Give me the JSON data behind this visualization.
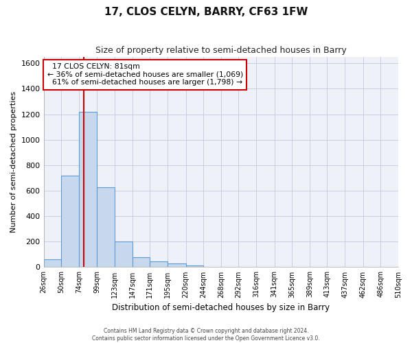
{
  "title": "17, CLOS CELYN, BARRY, CF63 1FW",
  "subtitle": "Size of property relative to semi-detached houses in Barry",
  "xlabel": "Distribution of semi-detached houses by size in Barry",
  "ylabel": "Number of semi-detached properties",
  "footer_line1": "Contains HM Land Registry data © Crown copyright and database right 2024.",
  "footer_line2": "Contains public sector information licensed under the Open Government Licence v3.0.",
  "bin_labels": [
    "26sqm",
    "50sqm",
    "74sqm",
    "99sqm",
    "123sqm",
    "147sqm",
    "171sqm",
    "195sqm",
    "220sqm",
    "244sqm",
    "268sqm",
    "292sqm",
    "316sqm",
    "341sqm",
    "365sqm",
    "389sqm",
    "413sqm",
    "437sqm",
    "462sqm",
    "486sqm",
    "510sqm"
  ],
  "bar_values": [
    60,
    720,
    1220,
    625,
    200,
    80,
    45,
    30,
    15,
    0,
    0,
    0,
    0,
    0,
    0,
    0,
    0,
    0,
    0,
    0
  ],
  "bin_edges": [
    26,
    50,
    74,
    99,
    123,
    147,
    171,
    195,
    220,
    244,
    268,
    292,
    316,
    341,
    365,
    389,
    413,
    437,
    462,
    486,
    510
  ],
  "property_size": 81,
  "pct_smaller": 36,
  "num_smaller": 1069,
  "pct_larger": 61,
  "num_larger": 1798,
  "bar_color": "#c8d8ec",
  "bar_edge_color": "#5b9bd5",
  "vline_color": "#cc0000",
  "annotation_box_facecolor": "#ffffff",
  "annotation_box_edgecolor": "#cc0000",
  "ylim": [
    0,
    1650
  ],
  "yticks": [
    0,
    200,
    400,
    600,
    800,
    1000,
    1200,
    1400,
    1600
  ],
  "axes_bg_color": "#eef2f8",
  "figure_bg_color": "#ffffff",
  "grid_color": "#c0c8d8",
  "title_fontsize": 11,
  "subtitle_fontsize": 9,
  "ylabel_fontsize": 8,
  "xlabel_fontsize": 8.5,
  "ytick_fontsize": 8,
  "xtick_fontsize": 7,
  "footer_fontsize": 5.5
}
